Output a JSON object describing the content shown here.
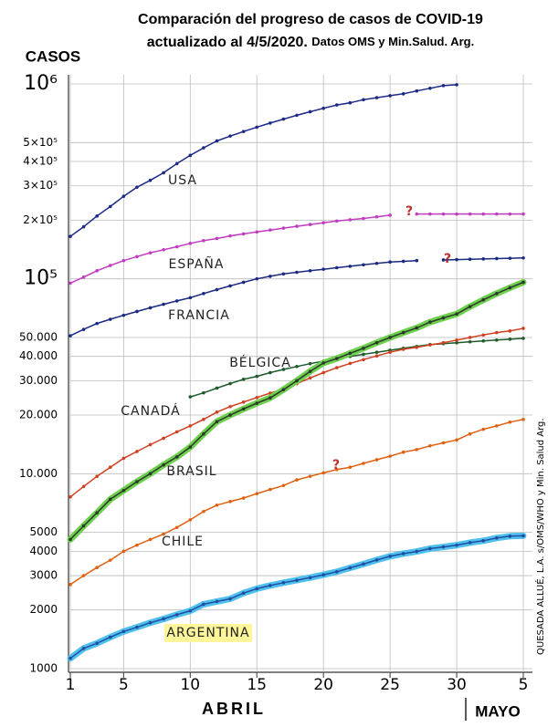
{
  "chart_data": {
    "type": "line",
    "title": "Comparación del progreso de casos de COVID-19",
    "subtitle": "actualizado al 4/5/2020.",
    "source": "Datos OMS y Min.Salud. Arg.",
    "y_label": "CASOS",
    "x_label": "ABRIL",
    "x_label_2": "MAYO",
    "credit": "QUESADA ALLUÉ, L.A. s/OMS/WHO y Min. Salud Arg.",
    "log_scale": true,
    "grid": true,
    "xlim": [
      1,
      35
    ],
    "xticks": [
      1,
      5,
      10,
      15,
      20,
      25,
      30,
      {
        "value": 35,
        "label": "5"
      }
    ],
    "ylim": [
      1000,
      1000000
    ],
    "yticks": [
      1000,
      2000,
      3000,
      4000,
      5000,
      {
        "value": 10000,
        "label": "10.000"
      },
      {
        "value": 20000,
        "label": "20.000"
      },
      {
        "value": 30000,
        "label": "30.000"
      },
      {
        "value": 40000,
        "label": "40.000"
      },
      {
        "value": 50000,
        "label": "50.000"
      },
      {
        "value": 100000,
        "label": "10⁵"
      },
      {
        "value": 200000,
        "label": "2×10⁵"
      },
      {
        "value": 300000,
        "label": "3×10⁵"
      },
      {
        "value": 400000,
        "label": "4×10⁵"
      },
      {
        "value": 500000,
        "label": "5×10⁵"
      },
      {
        "value": 1000000,
        "label": "10⁶"
      }
    ],
    "x": [
      1,
      2,
      3,
      4,
      5,
      6,
      7,
      8,
      9,
      10,
      11,
      12,
      13,
      14,
      15,
      16,
      17,
      18,
      19,
      20,
      21,
      22,
      23,
      24,
      25,
      26,
      27,
      28,
      29,
      30,
      31,
      32,
      33,
      34,
      35
    ],
    "series": [
      {
        "name": "USA",
        "color": "#1c2a86",
        "values": [
          165000,
          185000,
          210000,
          235000,
          265000,
          295000,
          320000,
          350000,
          390000,
          430000,
          470000,
          510000,
          540000,
          570000,
          600000,
          630000,
          660000,
          690000,
          720000,
          750000,
          780000,
          800000,
          830000,
          850000,
          870000,
          890000,
          920000,
          950000,
          980000,
          990000,
          null,
          null,
          null,
          null,
          null
        ]
      },
      {
        "name": "ESPAÑA",
        "color": "#c03cc0",
        "values": [
          95000,
          102000,
          110000,
          117000,
          124000,
          130000,
          136000,
          141000,
          146000,
          152000,
          157000,
          161000,
          166000,
          170000,
          174000,
          178000,
          182000,
          186000,
          190000,
          194000,
          198000,
          201000,
          204000,
          208000,
          212000,
          null,
          215000,
          215000,
          215000,
          215000,
          215000,
          215000,
          215000,
          215000,
          215000
        ]
      },
      {
        "name": "FRANCIA",
        "color": "#1a2a80",
        "values": [
          51000,
          55000,
          59000,
          62000,
          65000,
          68000,
          71000,
          74000,
          77000,
          80000,
          84000,
          88000,
          92000,
          96000,
          100000,
          103000,
          106000,
          108000,
          110000,
          112000,
          114000,
          116000,
          118000,
          120000,
          122000,
          123000,
          124000,
          null,
          125000,
          125500,
          126000,
          126500,
          127000,
          127500,
          128000
        ]
      },
      {
        "name": "BÉLGICA",
        "color": "#1e5a2a",
        "values": [
          null,
          null,
          null,
          null,
          null,
          null,
          null,
          null,
          null,
          24800,
          26000,
          27500,
          29000,
          30500,
          31600,
          33000,
          34300,
          35500,
          36700,
          37800,
          39000,
          40000,
          41000,
          42000,
          43000,
          44000,
          45000,
          46000,
          46500,
          47000,
          47500,
          48000,
          48500,
          49000,
          49500
        ]
      },
      {
        "name": "CANADÁ",
        "color": "#d04020",
        "values": [
          7600,
          8600,
          9700,
          10800,
          12000,
          13000,
          14100,
          15200,
          16400,
          17600,
          19000,
          20700,
          22100,
          23300,
          24600,
          25900,
          27100,
          29000,
          31000,
          33000,
          35000,
          36800,
          38500,
          40200,
          42000,
          43500,
          44500,
          45800,
          47000,
          48500,
          50000,
          51500,
          53000,
          54000,
          55700
        ]
      },
      {
        "name": "BRASIL",
        "color": "#2a3a2a",
        "highlight": "#6fcf4f",
        "values": [
          4600,
          5400,
          6300,
          7400,
          8200,
          9100,
          10000,
          11100,
          12200,
          13700,
          16000,
          18500,
          20000,
          21500,
          23000,
          24500,
          27000,
          30000,
          33500,
          37000,
          39000,
          41500,
          44000,
          47000,
          50000,
          53000,
          56000,
          60000,
          63000,
          66000,
          72000,
          78000,
          84000,
          90000,
          96000
        ]
      },
      {
        "name": "CHILE",
        "color": "#e06010",
        "values": [
          2700,
          3000,
          3300,
          3600,
          4000,
          4300,
          4600,
          4900,
          5300,
          5800,
          6400,
          6900,
          7200,
          7500,
          7900,
          8300,
          8700,
          9300,
          9700,
          10100,
          10500,
          10800,
          11300,
          11800,
          12300,
          12900,
          13300,
          13900,
          14400,
          14900,
          16000,
          16900,
          17600,
          18400,
          19000
        ]
      },
      {
        "name": "ARGENTINA",
        "color": "#1f4fa0",
        "highlight": "#4fc0ee",
        "values": [
          1130,
          1270,
          1350,
          1450,
          1550,
          1630,
          1720,
          1800,
          1890,
          1980,
          2140,
          2210,
          2280,
          2440,
          2570,
          2670,
          2760,
          2840,
          2930,
          3030,
          3140,
          3290,
          3440,
          3610,
          3770,
          3890,
          3990,
          4130,
          4210,
          4300,
          4430,
          4530,
          4680,
          4780,
          4800
        ]
      }
    ],
    "annotations": [
      {
        "text": "?"
      },
      {
        "text": "?"
      },
      {
        "text": "?"
      }
    ]
  }
}
